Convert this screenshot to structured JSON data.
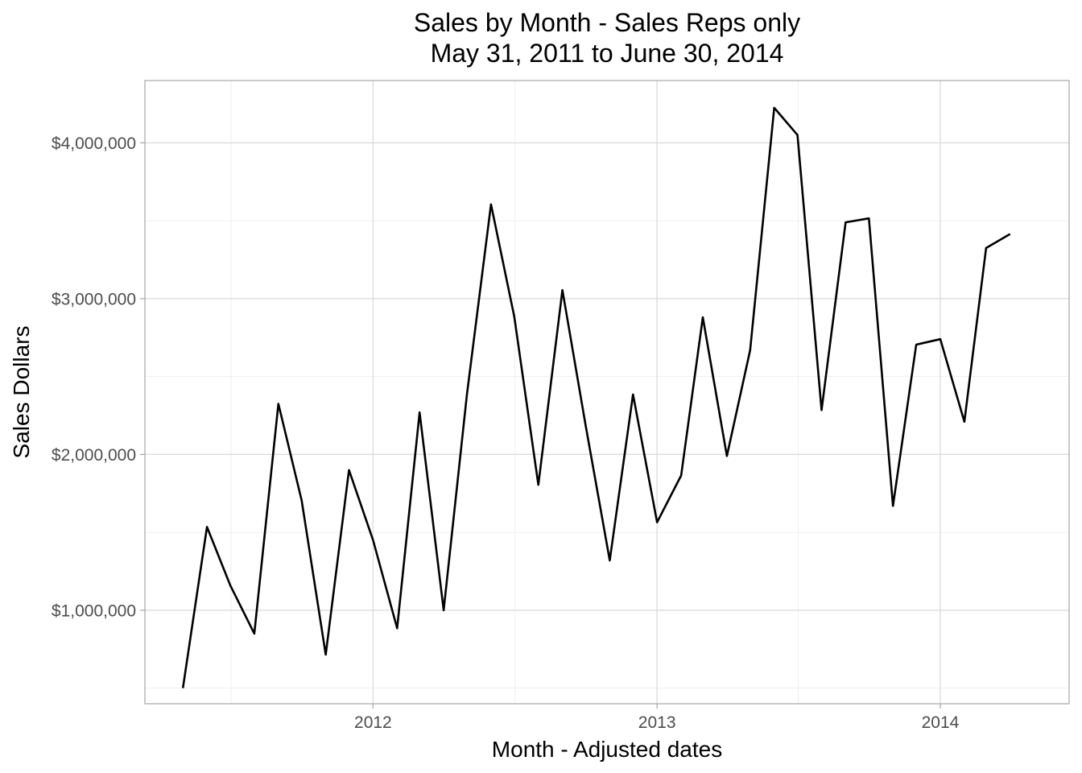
{
  "chart_data": {
    "type": "line",
    "title": "Sales by Month - Sales Reps only",
    "subtitle": "May 31, 2011 to  June 30, 2014",
    "xlabel": "Month - Adjusted dates",
    "ylabel": "Sales Dollars",
    "grid": true,
    "legend": "none",
    "ylim": [
      400000,
      4400000
    ],
    "xlim": [
      "2011-03-13",
      "2014-06-16"
    ],
    "y_ticks": [
      {
        "value": 1000000,
        "label": "$1,000,000"
      },
      {
        "value": 2000000,
        "label": "$2,000,000"
      },
      {
        "value": 3000000,
        "label": "$3,000,000"
      },
      {
        "value": 4000000,
        "label": "$4,000,000"
      }
    ],
    "y_minor_ticks": [
      500000,
      1500000,
      2500000,
      3500000
    ],
    "x_ticks": [
      {
        "value": "2012-01-01",
        "label": "2012"
      },
      {
        "value": "2013-01-01",
        "label": "2013"
      },
      {
        "value": "2014-01-01",
        "label": "2014"
      }
    ],
    "x_minor_ticks": [
      "2011-07-02",
      "2012-07-02",
      "2013-07-02"
    ],
    "series": [
      {
        "color": "#000000",
        "x": [
          "2011-05-01",
          "2011-06-01",
          "2011-07-01",
          "2011-08-01",
          "2011-09-01",
          "2011-10-01",
          "2011-11-01",
          "2011-12-01",
          "2012-01-01",
          "2012-02-01",
          "2012-03-01",
          "2012-04-01",
          "2012-05-01",
          "2012-06-01",
          "2012-07-01",
          "2012-08-01",
          "2012-09-01",
          "2012-10-01",
          "2012-11-01",
          "2012-12-01",
          "2013-01-01",
          "2013-02-01",
          "2013-03-01",
          "2013-04-01",
          "2013-05-01",
          "2013-06-01",
          "2013-07-01",
          "2013-08-01",
          "2013-09-01",
          "2013-10-01",
          "2013-11-01",
          "2013-12-01",
          "2014-01-01",
          "2014-02-01",
          "2014-03-01",
          "2014-04-01"
        ],
        "y": [
          500000,
          1535000,
          1160000,
          850000,
          2325000,
          1705000,
          715000,
          1900000,
          1450000,
          885000,
          2270000,
          1000000,
          2385000,
          3605000,
          2885000,
          1805000,
          3055000,
          2185000,
          1320000,
          2385000,
          1565000,
          1865000,
          2880000,
          1990000,
          2670000,
          4225000,
          4050000,
          2285000,
          3490000,
          3515000,
          1670000,
          2705000,
          2740000,
          2210000,
          3325000,
          3415000
        ]
      }
    ]
  }
}
